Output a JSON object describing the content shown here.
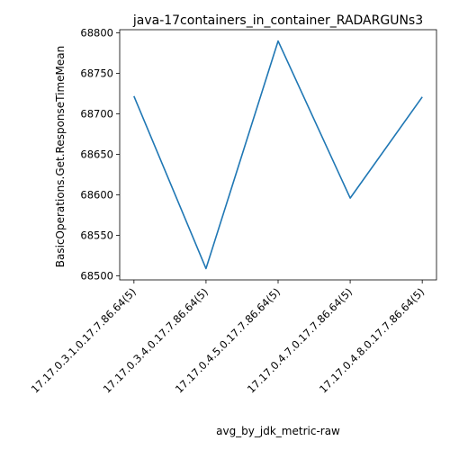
{
  "chart_data": {
    "type": "line",
    "title": "java-17containers_in_container_RADARGUNs3",
    "xlabel": "avg_by_jdk_metric-raw",
    "ylabel": "BasicOperations.Get.ResponseTimeMean",
    "categories": [
      "17.17.0.3.1.0.17.7.86.64(5)",
      "17.17.0.3.4.0.17.7.86.64(5)",
      "17.17.0.4.5.0.17.7.86.64(5)",
      "17.17.0.4.7.0.17.7.86.64(5)",
      "17.17.0.4.8.0.17.7.86.64(5)"
    ],
    "series": [
      {
        "values": [
          68722,
          68509,
          68790,
          68596,
          68721
        ]
      }
    ],
    "yticks": [
      68500,
      68550,
      68600,
      68650,
      68700,
      68750,
      68800
    ],
    "ylim": [
      68495,
      68804
    ],
    "grid": false,
    "line_color": "#1f77b4"
  }
}
